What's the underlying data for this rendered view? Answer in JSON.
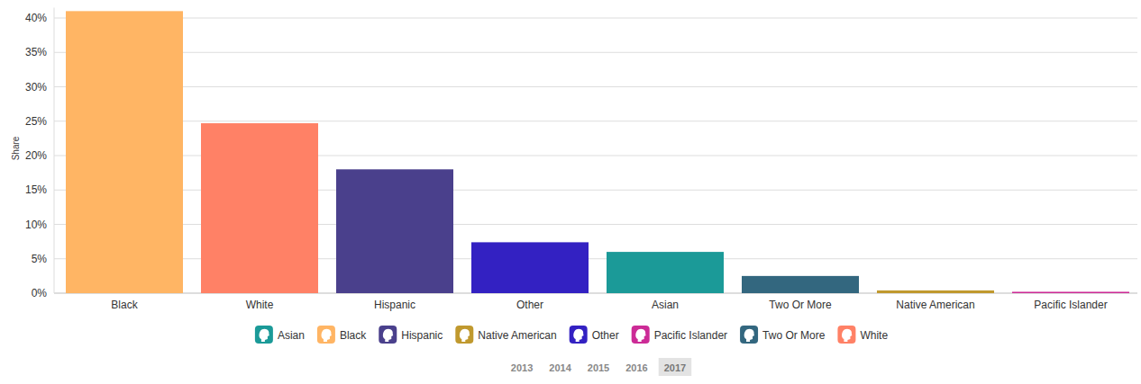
{
  "chart_data": {
    "type": "bar",
    "ylabel": "Share",
    "categories": [
      "Black",
      "White",
      "Hispanic",
      "Other",
      "Asian",
      "Two Or More",
      "Native American",
      "Pacific Islander"
    ],
    "series": [
      {
        "name": "Asian",
        "color": "#1b9a98",
        "values": [
          null,
          null,
          null,
          null,
          6.0,
          null,
          null,
          null
        ]
      },
      {
        "name": "Black",
        "color": "#ffb564",
        "values": [
          41.0,
          null,
          null,
          null,
          null,
          null,
          null,
          null
        ]
      },
      {
        "name": "Hispanic",
        "color": "#4a408c",
        "values": [
          null,
          null,
          18.0,
          null,
          null,
          null,
          null,
          null
        ]
      },
      {
        "name": "Native American",
        "color": "#c0992e",
        "values": [
          null,
          null,
          null,
          null,
          null,
          null,
          0.4,
          null
        ]
      },
      {
        "name": "Other",
        "color": "#3321c2",
        "values": [
          null,
          null,
          null,
          7.4,
          null,
          null,
          null,
          null
        ]
      },
      {
        "name": "Pacific Islander",
        "color": "#cc2b96",
        "values": [
          null,
          null,
          null,
          null,
          null,
          null,
          null,
          0.2
        ]
      },
      {
        "name": "Two Or More",
        "color": "#33677f",
        "values": [
          null,
          null,
          null,
          null,
          null,
          2.5,
          null,
          null
        ]
      },
      {
        "name": "White",
        "color": "#ff8166",
        "values": [
          null,
          24.7,
          null,
          null,
          null,
          null,
          null,
          null
        ]
      }
    ],
    "ylim": [
      0,
      41.5
    ],
    "yticks": [
      {
        "value": 0,
        "label": "0%"
      },
      {
        "value": 5,
        "label": "5%"
      },
      {
        "value": 10,
        "label": "10%"
      },
      {
        "value": 15,
        "label": "15%"
      },
      {
        "value": 20,
        "label": "20%"
      },
      {
        "value": 25,
        "label": "25%"
      },
      {
        "value": 30,
        "label": "30%"
      },
      {
        "value": 35,
        "label": "35%"
      },
      {
        "value": 40,
        "label": "40%"
      }
    ],
    "grid": true,
    "legend": "bottom",
    "years": [
      2013,
      2014,
      2015,
      2016,
      2017
    ],
    "selected_year": 2017
  }
}
